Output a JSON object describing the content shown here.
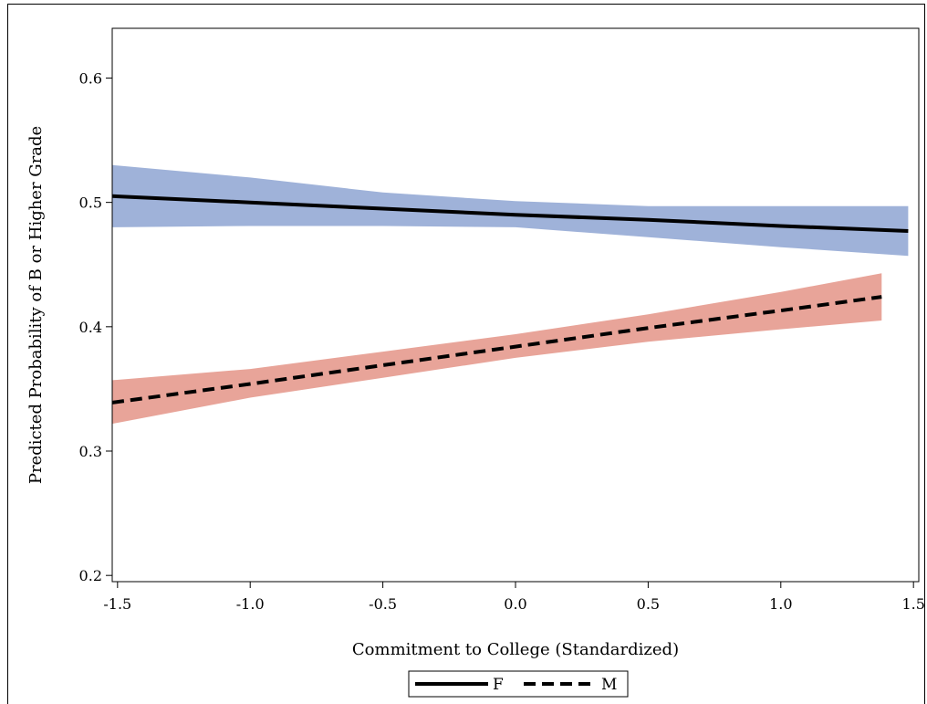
{
  "chart_data": {
    "type": "line",
    "title": "",
    "xlabel": "Commitment to College (Standardized)",
    "ylabel": "Predicted Probability of B or Higher Grade",
    "xlim": [
      -1.52,
      1.52
    ],
    "ylim": [
      0.195,
      0.64
    ],
    "xticks": [
      -1.5,
      -1.0,
      -0.5,
      0.0,
      0.5,
      1.0,
      1.5
    ],
    "xtick_labels": [
      "-1.5",
      "-1.0",
      "-0.5",
      "0.0",
      "0.5",
      "1.0",
      "1.5"
    ],
    "yticks": [
      0.2,
      0.3,
      0.4,
      0.5,
      0.6
    ],
    "ytick_labels": [
      "0.2",
      "0.3",
      "0.4",
      "0.5",
      "0.6"
    ],
    "grid": false,
    "legend_position": "bottom-center",
    "series": [
      {
        "name": "F",
        "line_style": "solid",
        "line_color": "#000000",
        "band_color": "#9fb2d9",
        "x": [
          -1.52,
          -1.0,
          -0.5,
          0.0,
          0.5,
          1.0,
          1.48
        ],
        "y": [
          0.505,
          0.5,
          0.495,
          0.49,
          0.486,
          0.481,
          0.477
        ],
        "lower": [
          0.48,
          0.481,
          0.481,
          0.48,
          0.472,
          0.464,
          0.457
        ],
        "upper": [
          0.53,
          0.52,
          0.508,
          0.501,
          0.497,
          0.497,
          0.497
        ]
      },
      {
        "name": "M",
        "line_style": "dashed",
        "line_color": "#000000",
        "band_color": "#e8a499",
        "x": [
          -1.52,
          -1.0,
          -0.5,
          0.0,
          0.5,
          1.0,
          1.38
        ],
        "y": [
          0.339,
          0.354,
          0.369,
          0.384,
          0.399,
          0.413,
          0.424
        ],
        "lower": [
          0.322,
          0.343,
          0.359,
          0.375,
          0.388,
          0.398,
          0.405
        ],
        "upper": [
          0.357,
          0.366,
          0.38,
          0.394,
          0.41,
          0.428,
          0.443
        ]
      }
    ]
  }
}
